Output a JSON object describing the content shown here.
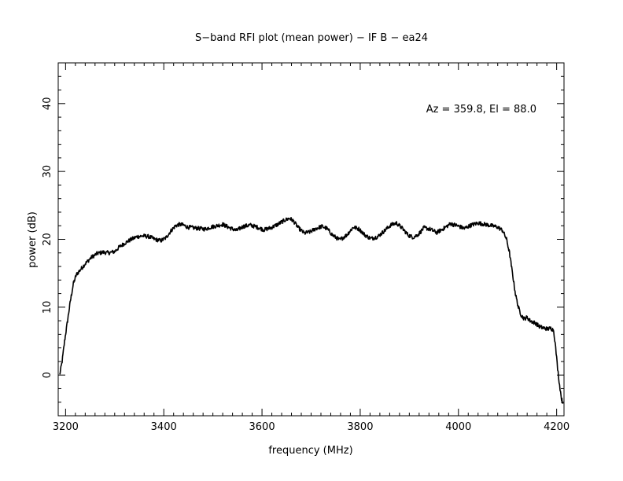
{
  "chart_data": {
    "type": "line",
    "title": "S−band RFI plot (mean power) − IF B − ea24",
    "xlabel": "frequency (MHz)",
    "ylabel": "power (dB)",
    "xlim": [
      3185,
      4215
    ],
    "ylim": [
      -6,
      46
    ],
    "xticks": [
      3200,
      3400,
      3600,
      3800,
      4000,
      4200
    ],
    "yticks": [
      0,
      10,
      20,
      30,
      40
    ],
    "xtick_labels": [
      "3200",
      "3400",
      "3600",
      "3800",
      "4000",
      "4200"
    ],
    "ytick_labels": [
      "0",
      "10",
      "20",
      "30",
      "40"
    ],
    "annotation": "Az = 359.8, El = 88.0",
    "grid": false,
    "series": [
      {
        "color": "#000000",
        "x": [
          3188,
          3193,
          3198,
          3204,
          3210,
          3216,
          3222,
          3230,
          3240,
          3252,
          3264,
          3276,
          3288,
          3300,
          3310,
          3322,
          3334,
          3346,
          3358,
          3370,
          3382,
          3394,
          3404,
          3414,
          3424,
          3432,
          3440,
          3448,
          3460,
          3472,
          3484,
          3496,
          3508,
          3520,
          3534,
          3548,
          3562,
          3576,
          3590,
          3604,
          3618,
          3632,
          3646,
          3656,
          3664,
          3674,
          3686,
          3698,
          3710,
          3722,
          3732,
          3744,
          3758,
          3772,
          3786,
          3798,
          3810,
          3822,
          3836,
          3850,
          3862,
          3874,
          3886,
          3898,
          3908,
          3918,
          3930,
          3942,
          3956,
          3970,
          3984,
          3998,
          4012,
          4026,
          4040,
          4054,
          4068,
          4080,
          4090,
          4098,
          4104,
          4110,
          4116,
          4122,
          4128,
          4134,
          4140,
          4146,
          4152,
          4158,
          4164,
          4170,
          4176,
          4182,
          4188,
          4194,
          4198,
          4202,
          4206,
          4210,
          4213
        ],
        "y": [
          0,
          2,
          5,
          8,
          11,
          13.5,
          14.8,
          15.5,
          16.4,
          17.3,
          17.9,
          18.1,
          18.0,
          18.2,
          18.9,
          19.5,
          20.0,
          20.4,
          20.5,
          20.4,
          20.0,
          19.8,
          20.2,
          21.2,
          22.0,
          22.2,
          22.1,
          21.8,
          21.7,
          21.6,
          21.5,
          21.8,
          22.0,
          22.2,
          21.7,
          21.3,
          21.9,
          22.1,
          21.8,
          21.4,
          21.7,
          22.2,
          22.8,
          23.1,
          22.7,
          21.7,
          20.9,
          21.1,
          21.6,
          21.9,
          21.6,
          20.6,
          19.9,
          20.6,
          21.8,
          21.5,
          20.6,
          20.1,
          20.4,
          21.3,
          22.1,
          22.4,
          21.6,
          20.6,
          20.3,
          20.7,
          21.7,
          21.5,
          21.0,
          21.6,
          22.3,
          22.0,
          21.6,
          22.1,
          22.4,
          22.2,
          22.0,
          21.8,
          21.3,
          20.0,
          18.0,
          15.0,
          12.0,
          10.0,
          8.8,
          8.3,
          8.5,
          8.0,
          7.8,
          7.6,
          7.2,
          7.0,
          6.9,
          6.8,
          6.9,
          6.6,
          4.0,
          1.0,
          -1.5,
          -3.5,
          -4.2
        ]
      }
    ]
  }
}
